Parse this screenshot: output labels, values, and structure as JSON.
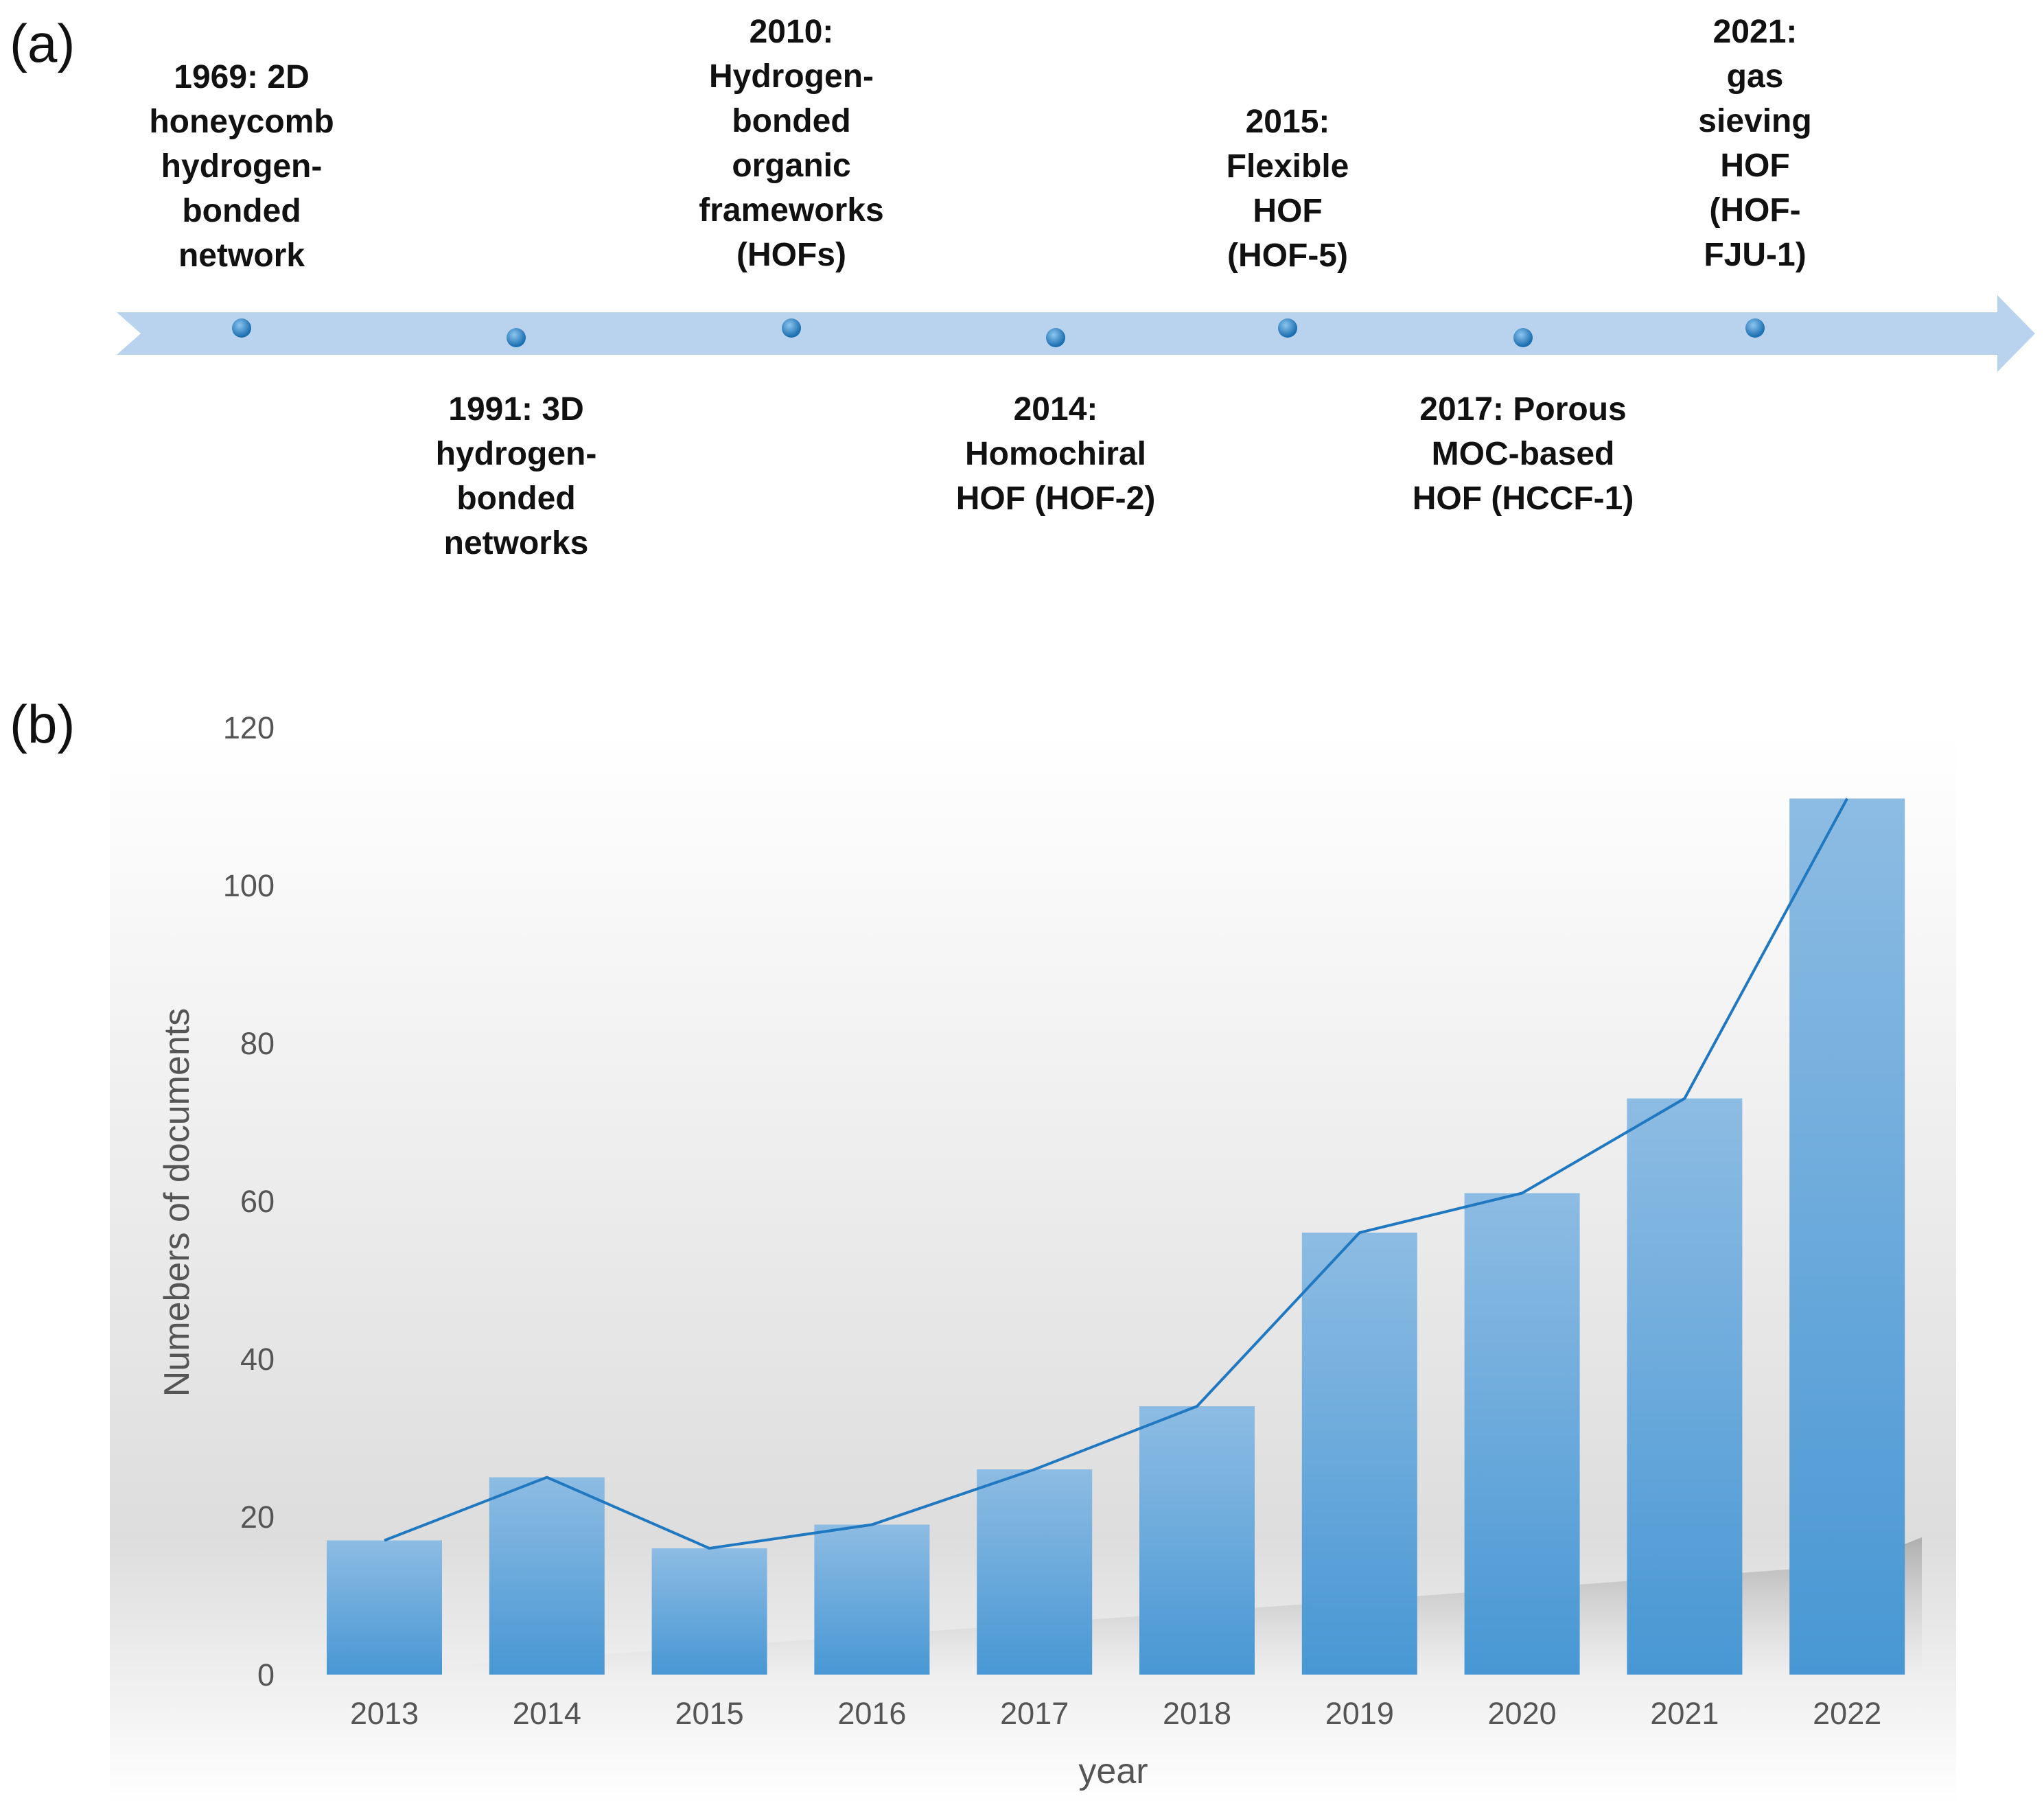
{
  "panel_a_label": "(a)",
  "panel_b_label": "(b)",
  "timeline": {
    "colors": {
      "arrow": "#b9d3ee",
      "dot": "#2e86c8"
    },
    "events": [
      {
        "year": 1969,
        "position": "above",
        "lines": [
          "1969: 2D",
          "honeycomb",
          "hydrogen-",
          "bonded",
          "network"
        ]
      },
      {
        "year": 1991,
        "position": "below",
        "lines": [
          "1991: 3D",
          "hydrogen-",
          "bonded",
          "networks"
        ]
      },
      {
        "year": 2010,
        "position": "above",
        "lines": [
          "2010:",
          "Hydrogen-",
          "bonded",
          "organic",
          "frameworks",
          "(HOFs)"
        ]
      },
      {
        "year": 2014,
        "position": "below",
        "lines": [
          "2014:",
          "Homochiral",
          "HOF (HOF-2)"
        ]
      },
      {
        "year": 2015,
        "position": "above",
        "lines": [
          "2015:",
          "Flexible",
          "HOF",
          "(HOF-5)"
        ]
      },
      {
        "year": 2017,
        "position": "below",
        "lines": [
          "2017: Porous",
          "MOC-based",
          "HOF (HCCF-1)"
        ]
      },
      {
        "year": 2021,
        "position": "above",
        "lines": [
          "2021:",
          "gas",
          "sieving",
          "HOF",
          "(HOF-",
          "FJU-1)"
        ]
      }
    ]
  },
  "chart_data": {
    "type": "bar",
    "title": "",
    "xlabel": "year",
    "ylabel": "Numebers of documents",
    "categories": [
      "2013",
      "2014",
      "2015",
      "2016",
      "2017",
      "2018",
      "2019",
      "2020",
      "2021",
      "2022"
    ],
    "values": [
      17,
      25,
      16,
      19,
      26,
      34,
      56,
      61,
      73,
      111
    ],
    "line_values": [
      17,
      25,
      16,
      19,
      26,
      34,
      56,
      61,
      73,
      111
    ],
    "ylim": [
      0,
      120
    ],
    "yticks": [
      "0",
      "20",
      "40",
      "60",
      "80",
      "100",
      "120"
    ],
    "grid": false,
    "colors": {
      "bar_top": "#8dbce3",
      "bar_bottom": "#4897d4",
      "line": "#1f78c0"
    }
  }
}
